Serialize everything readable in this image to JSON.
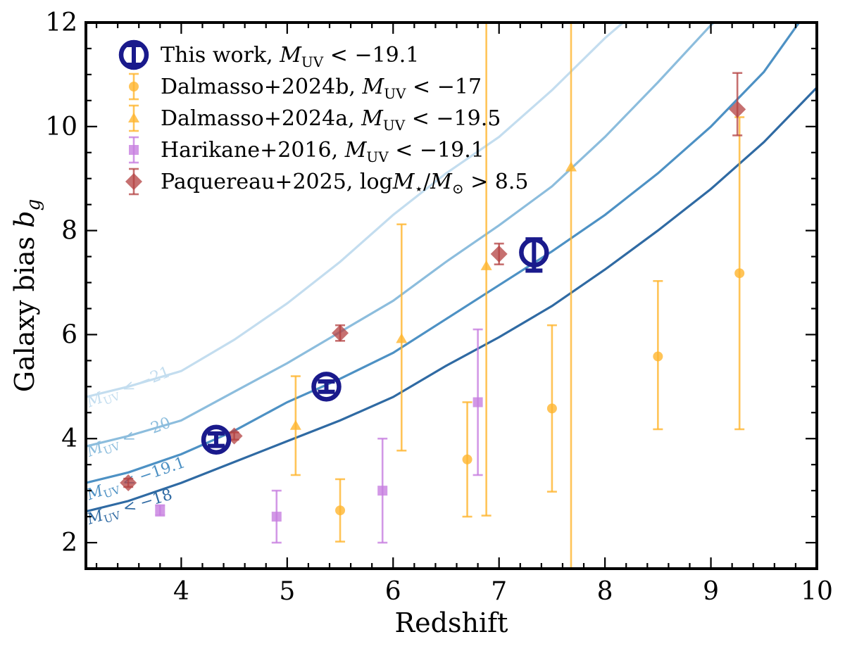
{
  "chart_data": {
    "type": "scatter",
    "xlabel": "Redshift",
    "ylabel": "Galaxy bias b_g",
    "xlim": [
      3.1,
      10.0
    ],
    "ylim": [
      1.5,
      12.0
    ],
    "xticks": [
      4,
      5,
      6,
      7,
      8,
      9,
      10
    ],
    "yticks": [
      2,
      4,
      6,
      8,
      10,
      12
    ],
    "legend_position": "top-left",
    "curves": [
      {
        "name": "M_UV < -21",
        "color": "#c3ddef",
        "x": [
          3.1,
          3.5,
          4.0,
          4.5,
          5.0,
          5.5,
          6.0,
          6.5,
          7.0,
          7.5,
          8.0,
          8.2
        ],
        "y": [
          4.8,
          5.0,
          5.3,
          5.9,
          6.6,
          7.4,
          8.3,
          9.1,
          9.8,
          10.7,
          11.7,
          12.05
        ]
      },
      {
        "name": "M_UV < -20",
        "color": "#8cbddd",
        "x": [
          3.1,
          3.5,
          4.0,
          4.5,
          5.0,
          5.5,
          6.0,
          6.5,
          7.0,
          7.5,
          8.0,
          8.5,
          9.0,
          9.05
        ],
        "y": [
          3.85,
          4.05,
          4.35,
          4.9,
          5.45,
          6.05,
          6.65,
          7.4,
          8.1,
          8.85,
          9.8,
          10.85,
          11.95,
          12.05
        ]
      },
      {
        "name": "M_UV < -19.1",
        "color": "#4d91c4",
        "x": [
          3.1,
          3.5,
          4.0,
          4.5,
          5.0,
          5.5,
          6.0,
          6.5,
          7.0,
          7.5,
          8.0,
          8.5,
          9.0,
          9.5,
          9.85
        ],
        "y": [
          3.15,
          3.35,
          3.7,
          4.15,
          4.7,
          5.15,
          5.65,
          6.3,
          6.95,
          7.6,
          8.3,
          9.1,
          10.0,
          11.05,
          12.05
        ]
      },
      {
        "name": "M_UV < -18",
        "color": "#2f6aa3",
        "x": [
          3.1,
          3.5,
          4.0,
          4.5,
          5.0,
          5.5,
          6.0,
          6.5,
          7.0,
          7.5,
          8.0,
          8.5,
          9.0,
          9.5,
          10.0
        ],
        "y": [
          2.6,
          2.8,
          3.15,
          3.55,
          3.95,
          4.35,
          4.8,
          5.4,
          5.95,
          6.55,
          7.25,
          8.0,
          8.8,
          9.7,
          10.75
        ]
      }
    ],
    "curve_labels": [
      {
        "name": "M_UV < -21",
        "color": "#c3ddef",
        "x": 3.13,
        "y": 4.6,
        "angle": -21
      },
      {
        "name": "M_UV < -20",
        "color": "#8cbddd",
        "x": 3.13,
        "y": 3.65,
        "angle": -20
      },
      {
        "name": "M_UV < -19.1",
        "color": "#4d91c4",
        "x": 3.13,
        "y": 2.82,
        "angle": -19
      },
      {
        "name": "M_UV < -18",
        "color": "#2f6aa3",
        "x": 3.13,
        "y": 2.35,
        "angle": -17
      }
    ],
    "series": [
      {
        "name": "This work, M_UV < −19.1",
        "marker": "open-circle",
        "color": "#1a1a8c",
        "alpha": 1.0,
        "x": [
          4.33,
          5.37,
          7.33
        ],
        "y": [
          3.98,
          5.0,
          7.58
        ],
        "yerr_low": [
          0.12,
          0.1,
          0.35
        ],
        "yerr_high": [
          0.12,
          0.1,
          0.25
        ]
      },
      {
        "name": "Dalmasso+2024b, M_UV < −17",
        "marker": "circle",
        "color": "#ffb52e",
        "alpha": 0.8,
        "x": [
          5.5,
          6.7,
          7.5,
          8.5,
          9.27
        ],
        "y": [
          2.62,
          3.6,
          4.58,
          5.58,
          7.18
        ],
        "yerr_low": [
          0.6,
          1.1,
          1.6,
          1.4,
          3.0
        ],
        "yerr_high": [
          0.6,
          1.1,
          1.6,
          1.45,
          3.0
        ]
      },
      {
        "name": "Dalmasso+2024a, M_UV < −19.5",
        "marker": "triangle",
        "color": "#ffb52e",
        "alpha": 0.8,
        "x": [
          5.08,
          6.08,
          6.88,
          7.68
        ],
        "y": [
          4.25,
          5.92,
          7.32,
          9.22
        ],
        "yerr_low": [
          0.95,
          2.15,
          4.8,
          8.0
        ],
        "yerr_high": [
          0.95,
          2.2,
          4.8,
          3.0
        ]
      },
      {
        "name": "Harikane+2016, M_UV < −19.1",
        "marker": "square",
        "color": "#c77ee0",
        "alpha": 0.8,
        "x": [
          3.8,
          4.9,
          5.9,
          6.8
        ],
        "y": [
          2.62,
          2.5,
          3.0,
          4.7
        ],
        "yerr_low": [
          0.1,
          0.5,
          1.0,
          1.4
        ],
        "yerr_high": [
          0.1,
          0.5,
          1.0,
          1.4
        ]
      },
      {
        "name": "Paquereau+2025, logM⋆/M⊙ > 8.5",
        "marker": "diamond",
        "color": "#b34040",
        "alpha": 0.75,
        "x": [
          3.5,
          4.5,
          5.5,
          7.0,
          9.25
        ],
        "y": [
          3.15,
          4.05,
          6.03,
          7.55,
          10.33
        ],
        "yerr_low": [
          0.08,
          0.07,
          0.15,
          0.2,
          0.5
        ],
        "yerr_high": [
          0.08,
          0.07,
          0.15,
          0.2,
          0.7
        ]
      }
    ]
  }
}
